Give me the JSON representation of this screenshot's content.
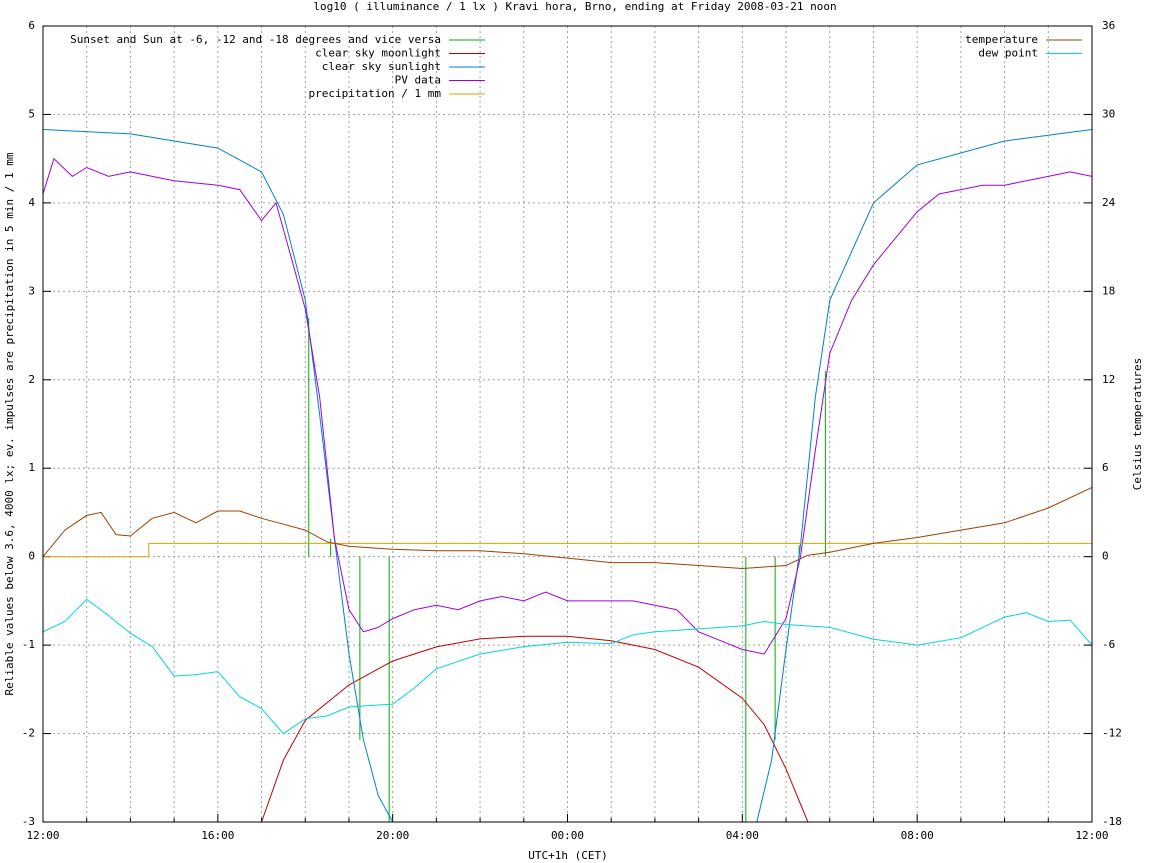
{
  "chart_data": {
    "type": "line",
    "title": "log10 ( illuminance / 1 lx ) Kravi hora, Brno, ending at Friday 2008-03-21 noon",
    "x_label": "UTC+1h (CET)",
    "y_label": "Reliable values below 3.6, 4000 lx; ev. impulses are precipitation in 5 min / 1 mm",
    "y2_label": "Celsius temperatures",
    "xlim": [
      0,
      24
    ],
    "xticks": [
      {
        "value": 0,
        "label": "12:00"
      },
      {
        "value": 4,
        "label": "16:00"
      },
      {
        "value": 8,
        "label": "20:00"
      },
      {
        "value": 12,
        "label": "00:00"
      },
      {
        "value": 16,
        "label": "04:00"
      },
      {
        "value": 20,
        "label": "08:00"
      },
      {
        "value": 24,
        "label": "12:00"
      }
    ],
    "x_minor_ticks": [
      1,
      2,
      3,
      5,
      6,
      7,
      9,
      10,
      11,
      13,
      14,
      15,
      17,
      18,
      19,
      21,
      22,
      23
    ],
    "ylim": [
      -3,
      6
    ],
    "yticks": [
      -3,
      -2,
      -1,
      0,
      1,
      2,
      3,
      4,
      5,
      6
    ],
    "y2lim": [
      -18,
      36
    ],
    "y2ticks": [
      -18,
      -12,
      -6,
      0,
      6,
      12,
      18,
      24,
      30,
      36
    ],
    "grid": true,
    "legend": "top-left",
    "legend2": "top-right",
    "series": [
      {
        "name": "Sunset and Sun at -6, -12 and -18 degrees and vice versa",
        "color": "#00b000",
        "style": "impulses",
        "x": [
          6.08,
          6.58,
          7.25,
          7.92,
          16.08,
          16.75,
          17.3,
          17.9
        ],
        "values": [
          2.7,
          0.2,
          -2.07,
          -3,
          -3,
          -2.07,
          0.13,
          2.1
        ]
      },
      {
        "name": "clear sky moonlight",
        "color": "#c00000",
        "style": "lines",
        "x": [
          5,
          5.5,
          6,
          7,
          8,
          9,
          10,
          11,
          12,
          13,
          14,
          15,
          16,
          16.5,
          17,
          17.5
        ],
        "values": [
          -3,
          -2.3,
          -1.85,
          -1.45,
          -1.18,
          -1.02,
          -0.93,
          -0.9,
          -0.9,
          -0.95,
          -1.05,
          -1.25,
          -1.6,
          -1.9,
          -2.4,
          -3
        ]
      },
      {
        "name": "clear sky sunlight",
        "color": "#0080c8",
        "style": "lines",
        "x": [
          0,
          2,
          4,
          5,
          5.5,
          6,
          6.33,
          6.67,
          7,
          7.33,
          7.67,
          8,
          12,
          16.33,
          16.67,
          17,
          17.33,
          17.67,
          18,
          19,
          20,
          22,
          24
        ],
        "values": [
          4.83,
          4.78,
          4.62,
          4.35,
          3.87,
          2.9,
          1.6,
          0.2,
          -1.1,
          -2.07,
          -2.7,
          -3,
          null,
          -3,
          -2.3,
          -1.05,
          0.13,
          1.8,
          2.9,
          4.0,
          4.43,
          4.7,
          4.83
        ]
      },
      {
        "name": "PV data",
        "color": "#a000e0",
        "style": "lines",
        "x": [
          0,
          0.25,
          0.67,
          1,
          1.5,
          2,
          2.5,
          3,
          4,
          4.5,
          5,
          5.33,
          5.67,
          6,
          6.33,
          6.67,
          7,
          7.33,
          7.67,
          8,
          8.5,
          9,
          9.5,
          10,
          10.5,
          11,
          11.5,
          12,
          12.5,
          13,
          13.5,
          14,
          14.5,
          15,
          15.5,
          16,
          16.5,
          17,
          17.33,
          17.67,
          18,
          18.5,
          19,
          19.5,
          20,
          20.5,
          21,
          21.5,
          22,
          22.5,
          23,
          23.5,
          24
        ],
        "values": [
          4.1,
          4.5,
          4.3,
          4.4,
          4.3,
          4.35,
          4.3,
          4.25,
          4.2,
          4.15,
          3.8,
          4.0,
          3.4,
          2.8,
          1.8,
          0.2,
          -0.6,
          -0.85,
          -0.8,
          -0.7,
          -0.6,
          -0.55,
          -0.6,
          -0.5,
          -0.45,
          -0.5,
          -0.4,
          -0.5,
          -0.5,
          -0.5,
          -0.5,
          -0.55,
          -0.6,
          -0.85,
          -0.95,
          -1.05,
          -1.1,
          -0.7,
          0.0,
          1.2,
          2.3,
          2.9,
          3.3,
          3.6,
          3.9,
          4.1,
          4.15,
          4.2,
          4.2,
          4.25,
          4.3,
          4.35,
          4.3
        ]
      },
      {
        "name": "precipitation / 1 mm",
        "color": "#e0a000",
        "style": "lines",
        "x": [
          0,
          2.42,
          2.42,
          24
        ],
        "values": [
          0,
          0,
          0.15,
          0.15
        ]
      },
      {
        "name": "temperature",
        "color": "#a04000",
        "style": "lines",
        "axis": "y2",
        "x": [
          0,
          0.5,
          1,
          1.33,
          1.67,
          2,
          2.5,
          3,
          3.5,
          4,
          4.5,
          5,
          5.5,
          6,
          6.5,
          7,
          8,
          9,
          10,
          11,
          12,
          13,
          14,
          15,
          16,
          17,
          17.5,
          18,
          19,
          20,
          21,
          22,
          23,
          24
        ],
        "values": [
          0,
          1.8,
          2.8,
          3.0,
          1.5,
          1.4,
          2.6,
          3.0,
          2.3,
          3.1,
          3.1,
          2.6,
          2.2,
          1.8,
          1.0,
          0.7,
          0.5,
          0.4,
          0.4,
          0.2,
          -0.1,
          -0.4,
          -0.4,
          -0.6,
          -0.8,
          -0.6,
          0.1,
          0.3,
          0.9,
          1.3,
          1.8,
          2.3,
          3.3,
          4.7
        ]
      },
      {
        "name": "dew point",
        "color": "#00d8d8",
        "style": "lines",
        "axis": "y2",
        "x": [
          0,
          0.5,
          1,
          1.5,
          2,
          2.5,
          3,
          3.5,
          4,
          4.5,
          5,
          5.5,
          6,
          6.5,
          7,
          8,
          8.5,
          9,
          10,
          11,
          12,
          13,
          13.5,
          14,
          15,
          16,
          16.5,
          17,
          18,
          19,
          20,
          21,
          22,
          22.5,
          23,
          23.5,
          24
        ],
        "values": [
          -5.1,
          -4.4,
          -2.9,
          -4.0,
          -5.2,
          -6.1,
          -8.1,
          -8.0,
          -7.8,
          -9.5,
          -10.3,
          -12.0,
          -11.0,
          -10.8,
          -10.2,
          -10.0,
          -8.9,
          -7.6,
          -6.6,
          -6.1,
          -5.8,
          -5.9,
          -5.3,
          -5.1,
          -4.9,
          -4.7,
          -4.4,
          -4.6,
          -4.8,
          -5.6,
          -6.0,
          -5.5,
          -4.1,
          -3.8,
          -4.4,
          -4.3,
          -6.0
        ]
      }
    ]
  }
}
